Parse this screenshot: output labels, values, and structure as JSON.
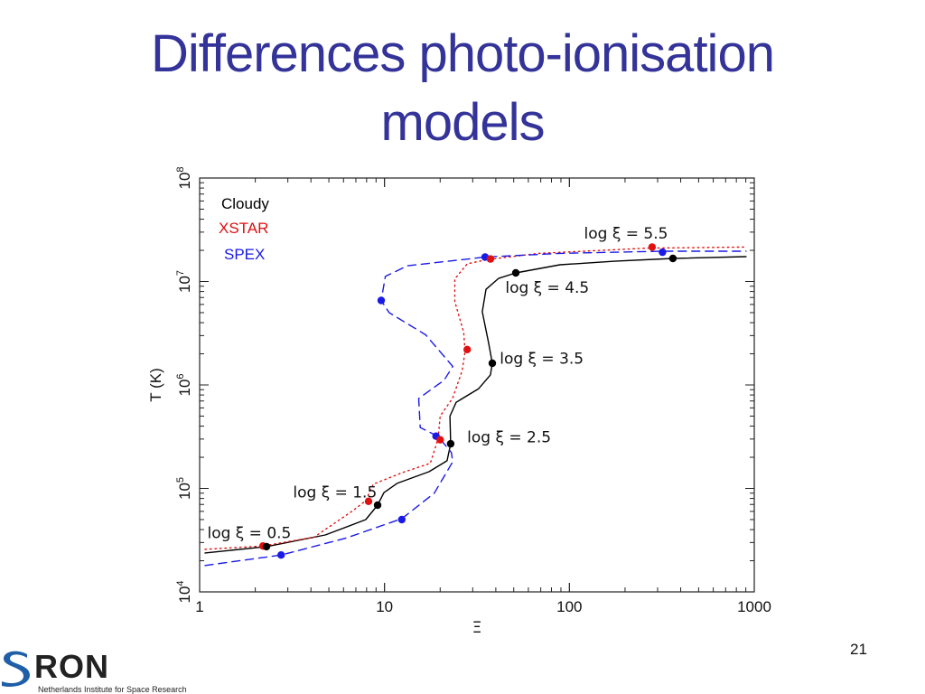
{
  "slide": {
    "title_line1": "Differences photo-ionisation",
    "title_line2": "models",
    "page_number": "21",
    "logo": {
      "name": "RON",
      "subtitle": "Netherlands Institute for Space Research"
    },
    "colors": {
      "title": "#333399",
      "cloudy": "#000000",
      "xstar": "#e01010",
      "spex": "#1a1ae6"
    }
  },
  "chart_data": {
    "type": "line",
    "title": "",
    "xlabel": "Ξ",
    "ylabel": "T (K)",
    "xscale": "log",
    "yscale": "log",
    "xlim": [
      1,
      1000
    ],
    "ylim": [
      10000,
      100000000
    ],
    "x_ticks": [
      {
        "v": 1,
        "label": "1"
      },
      {
        "v": 10,
        "label": "10"
      },
      {
        "v": 100,
        "label": "100"
      },
      {
        "v": 1000,
        "label": "1000"
      }
    ],
    "y_ticks": [
      {
        "v": 10000,
        "base": "10",
        "exp": "4"
      },
      {
        "v": 100000,
        "base": "10",
        "exp": "5"
      },
      {
        "v": 1000000,
        "base": "10",
        "exp": "6"
      },
      {
        "v": 10000000,
        "base": "10",
        "exp": "7"
      },
      {
        "v": 100000000,
        "base": "10",
        "exp": "8"
      }
    ],
    "legend": {
      "placement": "top-left",
      "entries": [
        "Cloudy",
        "XSTAR",
        "SPEX"
      ]
    },
    "series": [
      {
        "name": "Cloudy",
        "color": "#000000",
        "style": "solid",
        "points": [
          [
            1.07,
            23800
          ],
          [
            2.3,
            27400
          ],
          [
            4.78,
            35500
          ],
          [
            7.92,
            50000
          ],
          [
            9.17,
            69000
          ],
          [
            9.93,
            91000
          ],
          [
            11.7,
            112000
          ],
          [
            17.4,
            145000
          ],
          [
            21.8,
            185000
          ],
          [
            22.8,
            270000
          ],
          [
            22.6,
            500000
          ],
          [
            24.4,
            680000
          ],
          [
            32.3,
            920000
          ],
          [
            37.4,
            1250000
          ],
          [
            38.3,
            1620000
          ],
          [
            36.6,
            2520000
          ],
          [
            33.8,
            5100000
          ],
          [
            35.4,
            8400000
          ],
          [
            41.4,
            10700000
          ],
          [
            51.3,
            12100000
          ],
          [
            88.9,
            14500000
          ],
          [
            175,
            15700000
          ],
          [
            363,
            16700000
          ],
          [
            903,
            17400000
          ]
        ],
        "markers": [
          [
            2.3,
            27400
          ],
          [
            9.17,
            69000
          ],
          [
            22.8,
            270000
          ],
          [
            38.3,
            1620000
          ],
          [
            51.3,
            12100000
          ],
          [
            363,
            16700000
          ]
        ]
      },
      {
        "name": "XSTAR",
        "color": "#e01010",
        "style": "dotted",
        "points": [
          [
            1.07,
            25800
          ],
          [
            2.2,
            27800
          ],
          [
            4.16,
            33800
          ],
          [
            6.75,
            61000
          ],
          [
            7.92,
            76000
          ],
          [
            8.69,
            110000
          ],
          [
            12.6,
            143000
          ],
          [
            17.7,
            175000
          ],
          [
            19.5,
            302000
          ],
          [
            20.0,
            500000
          ],
          [
            23.4,
            750000
          ],
          [
            26.3,
            1370000
          ],
          [
            27.3,
            2120000
          ],
          [
            26.8,
            3230000
          ],
          [
            24.0,
            6400000
          ],
          [
            24.0,
            10600000
          ],
          [
            28.0,
            14800000
          ],
          [
            35.4,
            16200000
          ],
          [
            68.0,
            18700000
          ],
          [
            209,
            20600000
          ],
          [
            263,
            21000000
          ],
          [
            903,
            21500000
          ]
        ],
        "markers": [
          [
            2.2,
            27800
          ],
          [
            8.2,
            75000
          ],
          [
            20.0,
            295000
          ],
          [
            28.0,
            2200000
          ],
          [
            37.4,
            16500000
          ],
          [
            280,
            21500000
          ]
        ]
      },
      {
        "name": "SPEX",
        "color": "#1a1ae6",
        "style": "dashed",
        "points": [
          [
            1.07,
            18000
          ],
          [
            2.76,
            22700
          ],
          [
            6.16,
            33000
          ],
          [
            12.4,
            51000
          ],
          [
            18.6,
            90000
          ],
          [
            23.4,
            181000
          ],
          [
            23.0,
            222000
          ],
          [
            19.5,
            318000
          ],
          [
            15.6,
            388000
          ],
          [
            15.3,
            740000
          ],
          [
            21.0,
            1110000
          ],
          [
            23.4,
            1510000
          ],
          [
            16.7,
            3050000
          ],
          [
            10.6,
            5000000
          ],
          [
            9.6,
            6550000
          ],
          [
            10.1,
            11200000
          ],
          [
            13.3,
            14200000
          ],
          [
            35.0,
            17200000
          ],
          [
            88.9,
            18700000
          ],
          [
            319,
            19600000
          ],
          [
            903,
            19600000
          ]
        ],
        "markers": [
          [
            2.76,
            22700
          ],
          [
            12.4,
            50000
          ],
          [
            19.0,
            320000
          ],
          [
            9.6,
            6550000
          ],
          [
            35.0,
            17200000
          ],
          [
            319,
            19200000
          ]
        ]
      }
    ],
    "annotations": [
      {
        "text": "log ξ = 0.5",
        "at": [
          1.1,
          33000
        ]
      },
      {
        "text": "log ξ = 1.5",
        "at": [
          3.2,
          82000
        ]
      },
      {
        "text": "log ξ = 2.5",
        "at": [
          28,
          280000
        ]
      },
      {
        "text": "log ξ = 3.5",
        "at": [
          42,
          1600000
        ]
      },
      {
        "text": "log ξ = 4.5",
        "at": [
          45,
          7800000
        ]
      },
      {
        "text": "log ξ = 5.5",
        "at": [
          120,
          26000000
        ]
      }
    ]
  }
}
